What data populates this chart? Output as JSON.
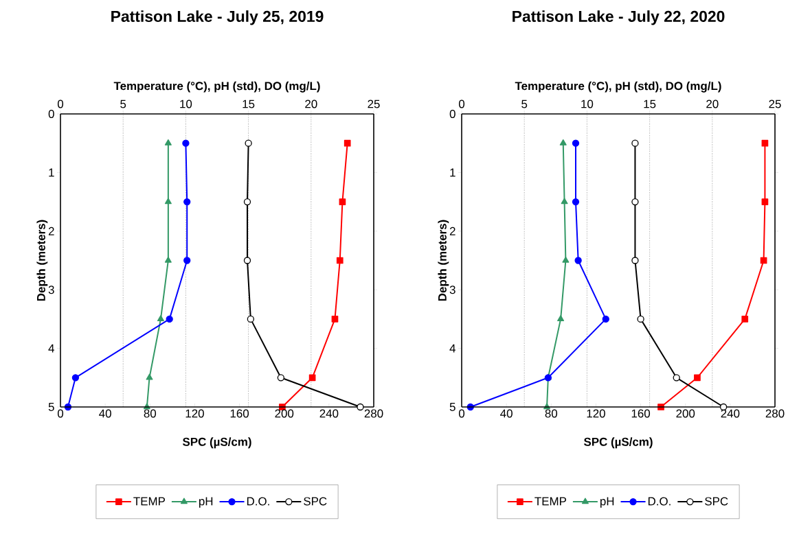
{
  "chart_data": [
    {
      "type": "line",
      "title": "Pattison Lake - July 25, 2019",
      "xlabel": "SPC (µS/cm)",
      "x2label": "Temperature (°C), pH (std), DO (mg/L)",
      "ylabel": "Depth (meters)",
      "xlim": [
        0,
        280
      ],
      "xticks": [
        0,
        40,
        80,
        120,
        160,
        200,
        240,
        280
      ],
      "x2lim": [
        0,
        25
      ],
      "x2ticks": [
        0,
        5,
        10,
        15,
        20,
        25
      ],
      "ylim": [
        5,
        0
      ],
      "yticks": [
        0,
        1,
        2,
        3,
        4,
        5
      ],
      "ref_lines": [
        {
          "axis": "x2",
          "value": 5,
          "line_style": "dotted"
        },
        {
          "axis": "x2",
          "value": 10,
          "line_style": "dotted"
        },
        {
          "axis": "x2",
          "value": 15,
          "line_style": "dotted"
        },
        {
          "axis": "x2",
          "value": 20,
          "line_style": "dotted"
        }
      ],
      "legend": "bottom",
      "line_style": "solid",
      "series": [
        {
          "name": "TEMP",
          "color": "#ff0000",
          "marker": "square",
          "axis": "x2",
          "x": [
            22.9,
            22.5,
            22.3,
            21.9,
            20.1,
            17.7
          ],
          "values": [
            0.5,
            1.5,
            2.5,
            3.5,
            4.5,
            5
          ]
        },
        {
          "name": "pH",
          "color": "#339966",
          "marker": "triangle",
          "axis": "x2",
          "x": [
            8.6,
            8.6,
            8.6,
            8.0,
            7.1,
            6.9
          ],
          "values": [
            0.5,
            1.5,
            2.5,
            3.5,
            4.5,
            5
          ]
        },
        {
          "name": "D.O.",
          "color": "#0000ff",
          "marker": "circle",
          "axis": "x2",
          "x": [
            10.0,
            10.1,
            10.1,
            8.7,
            1.2,
            0.6
          ],
          "values": [
            0.5,
            1.5,
            2.5,
            3.5,
            4.5,
            5
          ]
        },
        {
          "name": "SPC",
          "color": "#000000",
          "marker": "circle",
          "x": [
            168,
            167,
            167,
            170,
            197,
            268
          ],
          "values": [
            0.5,
            1.5,
            2.5,
            3.5,
            4.5,
            5
          ]
        }
      ]
    },
    {
      "type": "line",
      "title": "Pattison Lake - July 22, 2020",
      "xlabel": "SPC (µS/cm)",
      "x2label": "Temperature (°C), pH (std), DO (mg/L)",
      "ylabel": "Depth (meters)",
      "xlim": [
        0,
        280
      ],
      "xticks": [
        0,
        40,
        80,
        120,
        160,
        200,
        240,
        280
      ],
      "x2lim": [
        0,
        25
      ],
      "x2ticks": [
        0,
        5,
        10,
        15,
        20,
        25
      ],
      "ylim": [
        5,
        0
      ],
      "yticks": [
        0,
        1,
        2,
        3,
        4,
        5
      ],
      "ref_lines": [
        {
          "axis": "x2",
          "value": 5,
          "line_style": "dotted"
        },
        {
          "axis": "x2",
          "value": 10,
          "line_style": "dotted"
        },
        {
          "axis": "x2",
          "value": 15,
          "line_style": "dotted"
        },
        {
          "axis": "x2",
          "value": 20,
          "line_style": "dotted"
        }
      ],
      "legend": "bottom",
      "line_style": "solid",
      "series": [
        {
          "name": "TEMP",
          "color": "#ff0000",
          "marker": "square",
          "axis": "x2",
          "x": [
            24.2,
            24.2,
            24.1,
            22.6,
            18.8,
            15.9
          ],
          "values": [
            0.5,
            1.5,
            2.5,
            3.5,
            4.5,
            5
          ]
        },
        {
          "name": "pH",
          "color": "#339966",
          "marker": "triangle",
          "axis": "x2",
          "x": [
            8.1,
            8.2,
            8.3,
            7.9,
            6.9,
            6.8
          ],
          "values": [
            0.5,
            1.5,
            2.5,
            3.5,
            4.5,
            5
          ]
        },
        {
          "name": "D.O.",
          "color": "#0000ff",
          "marker": "circle",
          "axis": "x2",
          "x": [
            9.1,
            9.1,
            9.3,
            11.5,
            6.9,
            0.7
          ],
          "values": [
            0.5,
            1.5,
            2.5,
            3.5,
            4.5,
            5
          ]
        },
        {
          "name": "SPC",
          "color": "#000000",
          "marker": "circle",
          "x": [
            155,
            155,
            155,
            160,
            192,
            234
          ],
          "values": [
            0.5,
            1.5,
            2.5,
            3.5,
            4.5,
            5
          ]
        }
      ]
    }
  ]
}
